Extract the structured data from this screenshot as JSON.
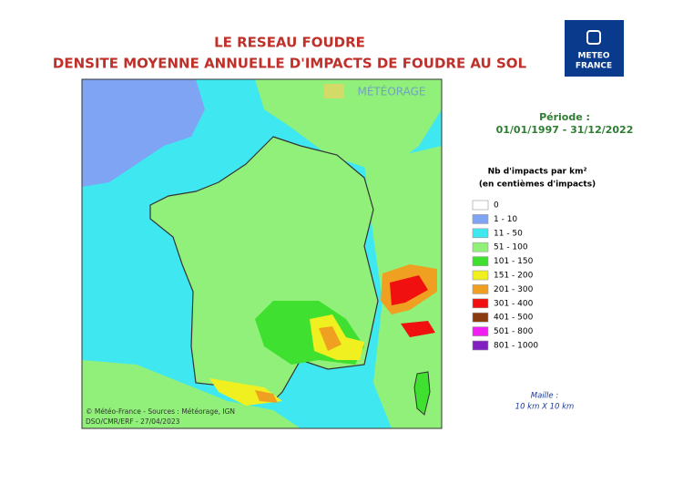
{
  "title": [
    "LE RESEAU FOUDRE",
    "DENSITE MOYENNE ANNUELLE D'IMPACTS DE FOUDRE AU SOL"
  ],
  "logo": [
    "METEO",
    "FRANCE"
  ],
  "watermark": "MÉTÉORAGE",
  "period": {
    "label": "Période :",
    "dates": "01/01/1997 - 31/12/2022"
  },
  "legend": {
    "title": [
      "Nb d'impacts par km²",
      "(en centièmes d'impacts)"
    ],
    "items": [
      {
        "label": "0",
        "color": "#ffffff"
      },
      {
        "label": "1 - 10",
        "color": "#7fa4f4"
      },
      {
        "label": "11 - 50",
        "color": "#3fe8f0"
      },
      {
        "label": "51 - 100",
        "color": "#90f07a"
      },
      {
        "label": "101 - 150",
        "color": "#40e030"
      },
      {
        "label": "151 - 200",
        "color": "#f0f020"
      },
      {
        "label": "201 - 300",
        "color": "#f0a020"
      },
      {
        "label": "301 - 400",
        "color": "#f01010"
      },
      {
        "label": "401 - 500",
        "color": "#8a3a10"
      },
      {
        "label": "501 - 800",
        "color": "#f020f0"
      },
      {
        "label": "801 - 1000",
        "color": "#8020c0"
      }
    ]
  },
  "mesh": [
    "Maille :",
    "10 km X 10 km"
  ],
  "credits": [
    "© Météo-France - Sources : Météorage, IGN",
    "DSO/CMR/ERF - 27/04/2023"
  ]
}
